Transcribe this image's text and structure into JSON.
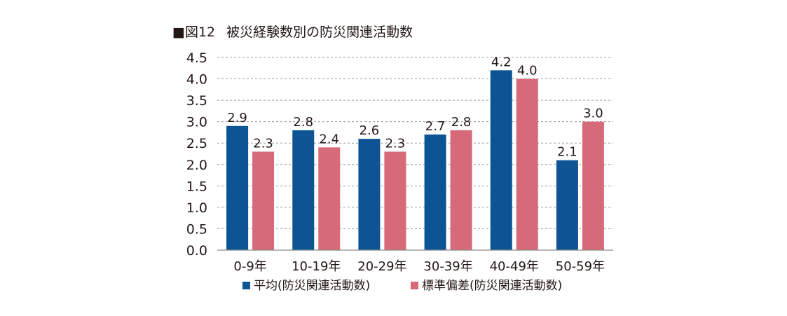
{
  "chart_data": {
    "type": "bar",
    "title_marker": "■",
    "title_fig": "図12",
    "title": "被災経験数別の防災関連活動数",
    "categories": [
      "0-9年",
      "10-19年",
      "20-29年",
      "30-39年",
      "40-49年",
      "50-59年"
    ],
    "series": [
      {
        "name": "平均(防災関連活動数)",
        "color": "#0d5494",
        "values": [
          2.9,
          2.8,
          2.6,
          2.7,
          4.2,
          2.1
        ],
        "labels": [
          "2.9",
          "2.8",
          "2.6",
          "2.7",
          "4.2",
          "2.1"
        ]
      },
      {
        "name": "標準偏差(防災関連活動数)",
        "color": "#d66a78",
        "values": [
          2.3,
          2.4,
          2.3,
          2.8,
          4.0,
          3.0
        ],
        "labels": [
          "2.3",
          "2.4",
          "2.3",
          "2.8",
          "4.0",
          "3.0"
        ]
      }
    ],
    "ylim": [
      0,
      4.5
    ],
    "yticks": [
      0,
      0.5,
      1.0,
      1.5,
      2.0,
      2.5,
      3.0,
      3.5,
      4.0,
      4.5
    ],
    "ytick_labels": [
      "0.0",
      "0.5",
      "1.0",
      "1.5",
      "2.0",
      "2.5",
      "3.0",
      "3.5",
      "4.0",
      "4.5"
    ],
    "grid": true,
    "legend_position": "bottom",
    "xlabel": "",
    "ylabel": ""
  }
}
